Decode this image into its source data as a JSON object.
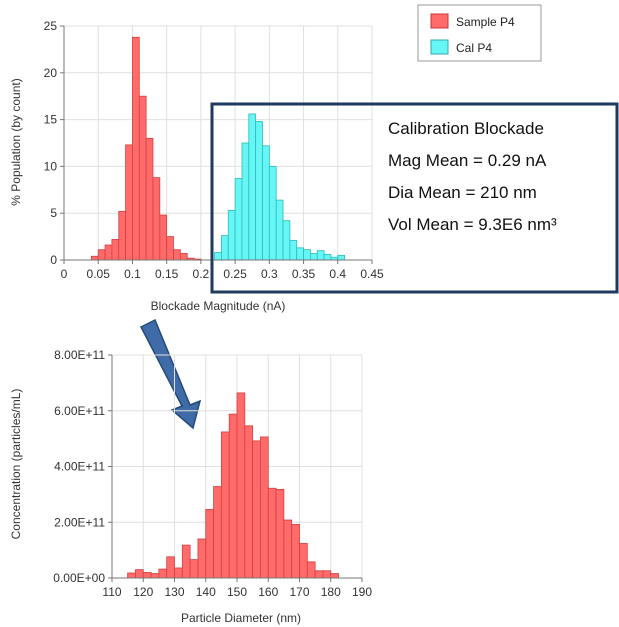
{
  "chart_data": [
    {
      "type": "bar",
      "title": "",
      "xlabel": "Blockade Magnitude (nA)",
      "ylabel": "% Population (by count)",
      "xlim": [
        0,
        0.45
      ],
      "ylim": [
        0,
        25
      ],
      "xticks": [
        "0",
        "0.05",
        "0.1",
        "0.15",
        "0.2",
        "0.25",
        "0.3",
        "0.35",
        "0.4",
        "0.45"
      ],
      "yticks": [
        "0",
        "5",
        "10",
        "15",
        "20",
        "25"
      ],
      "bin_width": 0.01,
      "grid": true,
      "legend": "top-right",
      "series": [
        {
          "name": "Sample P4",
          "color": "#ff6b6b",
          "x": [
            0.04,
            0.05,
            0.06,
            0.07,
            0.08,
            0.09,
            0.1,
            0.11,
            0.12,
            0.13,
            0.14,
            0.15,
            0.16,
            0.17,
            0.18,
            0.19
          ],
          "values": [
            0.4,
            1.1,
            1.6,
            2.2,
            5.2,
            12.3,
            23.8,
            17.5,
            13.0,
            8.8,
            4.8,
            2.5,
            1.1,
            0.7,
            0.2,
            0.1
          ]
        },
        {
          "name": "Cal P4",
          "color": "#66f6f6",
          "x": [
            0.22,
            0.23,
            0.24,
            0.25,
            0.26,
            0.27,
            0.28,
            0.29,
            0.3,
            0.31,
            0.32,
            0.33,
            0.34,
            0.35,
            0.36,
            0.37,
            0.38,
            0.39,
            0.4
          ],
          "values": [
            0.8,
            2.6,
            5.3,
            8.7,
            12.5,
            15.6,
            14.8,
            12.2,
            10.0,
            6.4,
            4.2,
            2.1,
            1.3,
            1.1,
            0.7,
            1.0,
            0.6,
            0.3,
            0.5
          ]
        }
      ]
    },
    {
      "type": "bar",
      "title": "",
      "xlabel": "Particle Diameter (nm)",
      "ylabel": "Concentration (particles/mL)",
      "xlim": [
        110,
        190
      ],
      "ylim": [
        0,
        800000000000.0
      ],
      "xticks": [
        "110",
        "120",
        "130",
        "140",
        "150",
        "160",
        "170",
        "180",
        "190"
      ],
      "yticks": [
        "0.00E+00",
        "2.00E+11",
        "4.00E+11",
        "6.00E+11",
        "8.00E+11"
      ],
      "bin_width": 2.5,
      "grid": true,
      "series": [
        {
          "name": "",
          "color": "#ff6b6b",
          "x": [
            116.25,
            118.75,
            121.25,
            123.75,
            126.25,
            128.75,
            131.25,
            133.75,
            136.25,
            138.75,
            141.25,
            143.75,
            146.25,
            148.75,
            151.25,
            153.75,
            156.25,
            158.75,
            161.25,
            163.75,
            166.25,
            168.75,
            171.25,
            173.75,
            176.25,
            178.75,
            181.25
          ],
          "values": [
            18000000000.0,
            30000000000.0,
            20000000000.0,
            16000000000.0,
            32000000000.0,
            76000000000.0,
            36000000000.0,
            118000000000.0,
            66000000000.0,
            140000000000.0,
            246000000000.0,
            328000000000.0,
            524000000000.0,
            588000000000.0,
            664000000000.0,
            546000000000.0,
            492000000000.0,
            506000000000.0,
            322000000000.0,
            318000000000.0,
            208000000000.0,
            192000000000.0,
            124000000000.0,
            58000000000.0,
            26000000000.0,
            26000000000.0,
            16000000000.0
          ]
        }
      ]
    }
  ],
  "legend": {
    "items": [
      {
        "label": "Sample P4",
        "color": "#ff6b6b",
        "border": "#cc3333"
      },
      {
        "label": "Cal P4",
        "color": "#66f6f6",
        "border": "#33aaaa"
      }
    ]
  },
  "callout": {
    "lines": [
      "Calibration Blockade",
      "Mag Mean = 0.29  nA",
      "Dia Mean = 210 nm",
      "Vol Mean = 9.3E6 nm³"
    ],
    "border_color": "#1f3a5f"
  },
  "arrow": {
    "color": "#3f6ca6",
    "border": "#254a7a"
  },
  "colors": {
    "sample_fill": "#ff6b6b",
    "sample_edge": "#d43f3f",
    "cal_fill": "#66f6f6",
    "cal_edge": "#2bbcbc",
    "grid": "#e0e0e0",
    "axis": "#777777"
  }
}
